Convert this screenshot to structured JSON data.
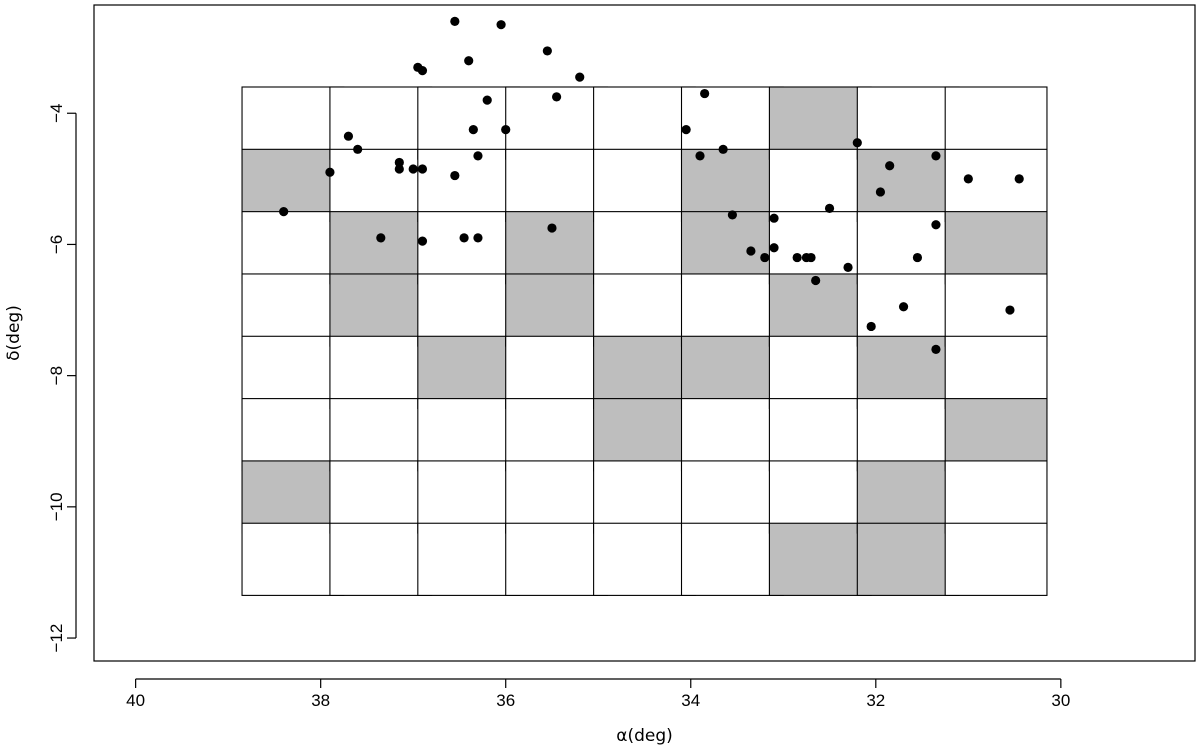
{
  "chart_data": {
    "type": "scatter",
    "xlabel": "α(deg)",
    "ylabel": "δ(deg)",
    "xlim": [
      40.45,
      28.55
    ],
    "ylim": [
      -12.35,
      -2.35
    ],
    "x_reversed": true,
    "x_ticks": [
      40,
      38,
      36,
      34,
      32,
      30
    ],
    "y_ticks": [
      -4,
      -6,
      -8,
      -10,
      -12
    ],
    "grid": false,
    "legend": "none",
    "colors": {
      "point": "#000000",
      "shaded": "#bebebe",
      "frame": "#000000"
    },
    "survey_columns": [
      [
        38.85,
        37.75
      ],
      [
        37.9,
        36.8
      ],
      [
        36.95,
        35.85
      ],
      [
        36.0,
        34.9
      ],
      [
        35.05,
        33.95
      ],
      [
        34.1,
        33.0
      ],
      [
        33.15,
        32.05
      ],
      [
        32.2,
        31.1
      ],
      [
        31.25,
        30.15
      ]
    ],
    "survey_rows": [
      [
        -3.6,
        -4.7
      ],
      [
        -4.55,
        -5.65
      ],
      [
        -5.5,
        -6.6
      ],
      [
        -6.45,
        -7.55
      ],
      [
        -7.4,
        -8.5
      ],
      [
        -8.35,
        -9.45
      ],
      [
        -9.3,
        -10.4
      ],
      [
        -10.25,
        -11.35
      ]
    ],
    "shaded_fields": [
      [
        0,
        1
      ],
      [
        0,
        6
      ],
      [
        1,
        2
      ],
      [
        1,
        3
      ],
      [
        2,
        4
      ],
      [
        3,
        2
      ],
      [
        3,
        3
      ],
      [
        4,
        4
      ],
      [
        4,
        5
      ],
      [
        5,
        1
      ],
      [
        5,
        2
      ],
      [
        5,
        4
      ],
      [
        6,
        0
      ],
      [
        6,
        3
      ],
      [
        6,
        7
      ],
      [
        7,
        1
      ],
      [
        7,
        4
      ],
      [
        7,
        6
      ],
      [
        7,
        7
      ],
      [
        8,
        2
      ],
      [
        8,
        5
      ]
    ],
    "points": [
      [
        36.55,
        -2.6
      ],
      [
        36.05,
        -2.65
      ],
      [
        35.55,
        -3.05
      ],
      [
        35.2,
        -3.45
      ],
      [
        36.4,
        -3.2
      ],
      [
        36.95,
        -3.3
      ],
      [
        36.9,
        -3.35
      ],
      [
        36.2,
        -3.8
      ],
      [
        35.45,
        -3.75
      ],
      [
        33.85,
        -3.7
      ],
      [
        36.35,
        -4.25
      ],
      [
        36.0,
        -4.25
      ],
      [
        34.05,
        -4.25
      ],
      [
        37.7,
        -4.35
      ],
      [
        37.6,
        -4.55
      ],
      [
        33.65,
        -4.55
      ],
      [
        32.2,
        -4.45
      ],
      [
        37.15,
        -4.75
      ],
      [
        36.3,
        -4.65
      ],
      [
        33.9,
        -4.65
      ],
      [
        31.35,
        -4.65
      ],
      [
        37.9,
        -4.9
      ],
      [
        37.15,
        -4.85
      ],
      [
        37.0,
        -4.85
      ],
      [
        36.9,
        -4.85
      ],
      [
        36.55,
        -4.95
      ],
      [
        31.85,
        -4.8
      ],
      [
        31.0,
        -5.0
      ],
      [
        30.45,
        -5.0
      ],
      [
        31.95,
        -5.2
      ],
      [
        32.5,
        -5.45
      ],
      [
        38.4,
        -5.5
      ],
      [
        33.55,
        -5.55
      ],
      [
        33.1,
        -5.6
      ],
      [
        35.5,
        -5.75
      ],
      [
        31.35,
        -5.7
      ],
      [
        37.35,
        -5.9
      ],
      [
        36.9,
        -5.95
      ],
      [
        36.45,
        -5.9
      ],
      [
        36.3,
        -5.9
      ],
      [
        33.35,
        -6.1
      ],
      [
        33.1,
        -6.05
      ],
      [
        33.2,
        -6.2
      ],
      [
        32.85,
        -6.2
      ],
      [
        32.75,
        -6.2
      ],
      [
        32.7,
        -6.2
      ],
      [
        31.55,
        -6.2
      ],
      [
        32.3,
        -6.35
      ],
      [
        32.65,
        -6.55
      ],
      [
        31.7,
        -6.95
      ],
      [
        30.55,
        -7.0
      ],
      [
        32.05,
        -7.25
      ],
      [
        31.35,
        -7.6
      ]
    ]
  }
}
